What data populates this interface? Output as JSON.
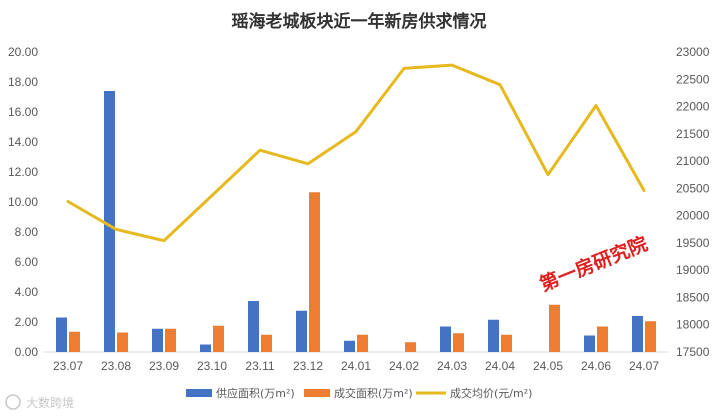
{
  "chart_data": {
    "type": "bar",
    "title": "瑶海老城板块近一年新房供求情况",
    "categories": [
      "23.07",
      "23.08",
      "23.09",
      "23.10",
      "23.11",
      "23.12",
      "24.01",
      "24.02",
      "24.03",
      "24.04",
      "24.05",
      "24.06",
      "24.07"
    ],
    "series": [
      {
        "name": "供应面积(万m²)",
        "type": "bar",
        "axis": "left",
        "color": "#4472C4",
        "values": [
          2.3,
          17.4,
          1.55,
          0.5,
          3.4,
          2.75,
          0.75,
          0,
          1.7,
          2.15,
          0,
          1.1,
          2.4
        ]
      },
      {
        "name": "成交面积(万m²)",
        "type": "bar",
        "axis": "left",
        "color": "#ED7D31",
        "values": [
          1.35,
          1.3,
          1.55,
          1.75,
          1.15,
          10.65,
          1.15,
          0.65,
          1.25,
          1.15,
          3.15,
          1.7,
          2.05
        ]
      },
      {
        "name": "成交均价(元/m²)",
        "type": "line",
        "axis": "right",
        "color": "#E6B91E",
        "values": [
          20260,
          19750,
          19540,
          20370,
          21200,
          20950,
          21540,
          22700,
          22760,
          22400,
          20750,
          22020,
          20460
        ]
      }
    ],
    "y_left": {
      "min": 0,
      "max": 20,
      "step": 2,
      "tick_labels": [
        "0.00",
        "2.00",
        "4.00",
        "6.00",
        "8.00",
        "10.00",
        "12.00",
        "14.00",
        "16.00",
        "18.00",
        "20.00"
      ]
    },
    "y_right": {
      "min": 17500,
      "max": 23000,
      "step": 500,
      "tick_labels": [
        "17500",
        "18000",
        "18500",
        "19000",
        "19500",
        "20000",
        "20500",
        "21000",
        "21500",
        "22000",
        "22500",
        "23000"
      ]
    },
    "grid": false,
    "legend_position": "bottom",
    "watermark": "第一房研究院",
    "logo_text": "大数跨境"
  }
}
